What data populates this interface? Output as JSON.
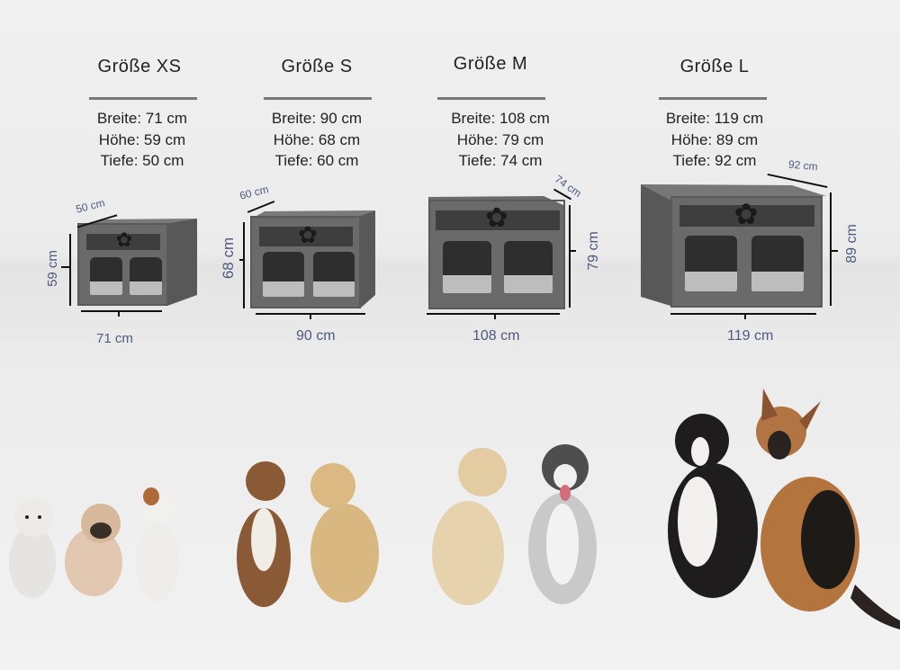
{
  "sizes": [
    {
      "title": "Größe XS",
      "specs": [
        "Breite: 71 cm",
        "Höhe: 59 cm",
        "Tiefe: 50 cm"
      ],
      "dims": {
        "width": "71 cm",
        "height": "59 cm",
        "depth": "50 cm"
      }
    },
    {
      "title": "Größe S",
      "specs": [
        "Breite: 90 cm",
        "Höhe: 68 cm",
        "Tiefe: 60 cm"
      ],
      "dims": {
        "width": "90 cm",
        "height": "68 cm",
        "depth": "60 cm"
      }
    },
    {
      "title": "Größe M",
      "specs": [
        "Breite: 108 cm",
        "Höhe: 79 cm",
        "Tiefe: 74 cm"
      ],
      "dims": {
        "width": "108 cm",
        "height": "79 cm",
        "depth": "74 cm"
      }
    },
    {
      "title": "Größe L",
      "specs": [
        "Breite: 119 cm",
        "Höhe: 89 cm",
        "Tiefe: 92 cm"
      ],
      "dims": {
        "width": "119 cm",
        "height": "89 cm",
        "depth": "92 cm"
      }
    }
  ],
  "colors": {
    "dimension_text": "#4f5a80",
    "crate": "#6a6a6a"
  },
  "icons": {
    "crate_logo": "bone-paw-icon"
  }
}
